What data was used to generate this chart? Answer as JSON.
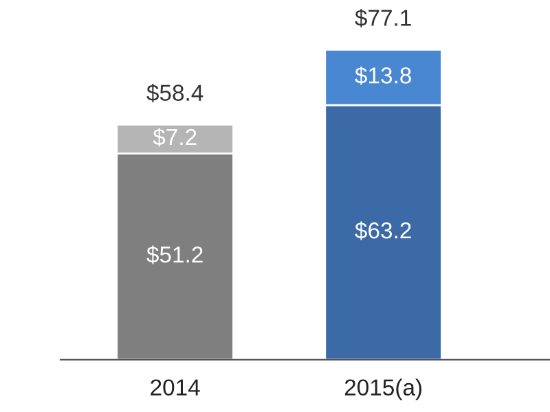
{
  "chart_data": {
    "type": "bar",
    "stacked": true,
    "categories": [
      "2014",
      "2015(a)"
    ],
    "series": [
      {
        "colors": [
          "#7f7f7f",
          "#3b6aa6"
        ],
        "values": [
          51.2,
          63.2
        ],
        "value_labels": [
          "$51.2",
          "$63.2"
        ]
      },
      {
        "colors": [
          "#b5b5b5",
          "#4a87d3"
        ],
        "values": [
          7.2,
          13.8
        ],
        "value_labels": [
          "$7.2",
          "$13.8"
        ]
      }
    ],
    "totals": [
      "$58.4",
      "$77.1"
    ],
    "grid": false
  }
}
